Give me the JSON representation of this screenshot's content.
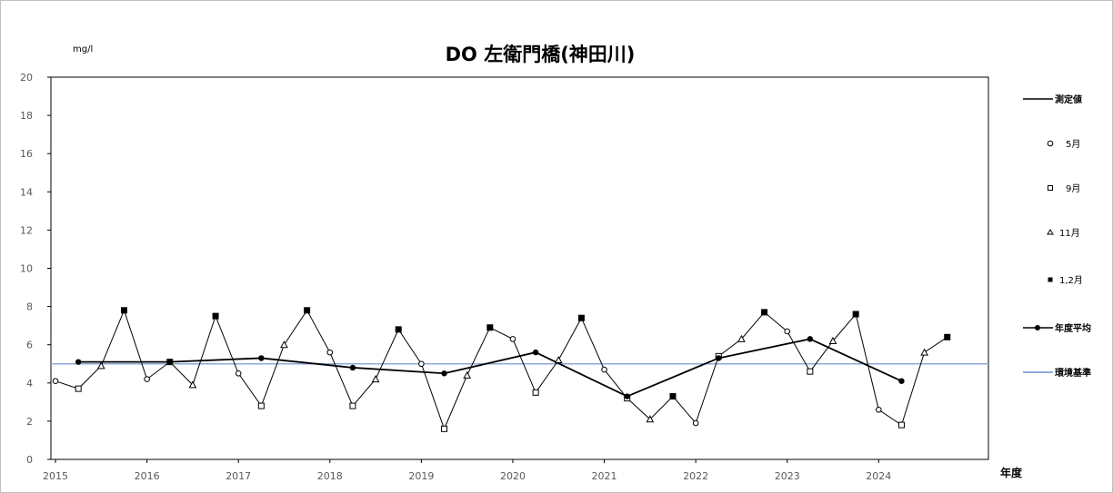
{
  "chart_data": {
    "type": "line",
    "title": "DO 左衛門橋(神田川)",
    "ylabel": "mg/l",
    "xlabel": "年度",
    "ylim": [
      0,
      20
    ],
    "yticks": [
      0,
      2,
      4,
      6,
      8,
      10,
      12,
      14,
      16,
      18,
      20
    ],
    "xlim": [
      2014.95,
      2025.2
    ],
    "xticks": [
      2015,
      2016,
      2017,
      2018,
      2019,
      2020,
      2021,
      2022,
      2023,
      2024
    ],
    "grid": false,
    "legend_position": "right",
    "series": [
      {
        "name": "測定値",
        "color": "#000000",
        "x": [
          2015.0,
          2015.25,
          2015.5,
          2015.75,
          2016.0,
          2016.25,
          2016.5,
          2016.75,
          2017.0,
          2017.25,
          2017.5,
          2017.75,
          2018.0,
          2018.25,
          2018.5,
          2018.75,
          2019.0,
          2019.25,
          2019.5,
          2019.75,
          2020.0,
          2020.25,
          2020.5,
          2020.75,
          2021.0,
          2021.25,
          2021.5,
          2021.75,
          2022.0,
          2022.25,
          2022.5,
          2022.75,
          2023.0,
          2023.25,
          2023.5,
          2023.75,
          2024.0,
          2024.25,
          2024.5,
          2024.75
        ],
        "y": [
          4.1,
          3.7,
          4.9,
          7.8,
          4.2,
          5.1,
          3.9,
          7.5,
          4.5,
          2.8,
          6.0,
          7.8,
          5.6,
          2.8,
          4.2,
          6.8,
          5.0,
          1.6,
          4.4,
          6.9,
          6.3,
          3.5,
          5.2,
          7.4,
          4.7,
          3.2,
          2.1,
          3.3,
          1.9,
          5.4,
          6.3,
          7.7,
          6.7,
          4.6,
          6.2,
          7.6,
          2.6,
          1.8,
          5.6,
          6.4
        ],
        "months": [
          "5月",
          "9月",
          "11月",
          "1,2月",
          "5月",
          "9月",
          "11月",
          "1,2月",
          "5月",
          "9月",
          "11月",
          "1,2月",
          "5月",
          "9月",
          "11月",
          "1,2月",
          "5月",
          "9月",
          "11月",
          "1,2月",
          "5月",
          "9月",
          "11月",
          "1,2月",
          "5月",
          "9月",
          "11月",
          "1,2月",
          "5月",
          "9月",
          "11月",
          "1,2月",
          "5月",
          "9月",
          "11月",
          "1,2月",
          "5月",
          "9月",
          "11月",
          "1,2月"
        ]
      },
      {
        "name": "年度平均",
        "color": "#000000",
        "x": [
          2015.25,
          2016.25,
          2017.25,
          2018.25,
          2019.25,
          2020.25,
          2021.25,
          2022.25,
          2023.25,
          2024.25
        ],
        "y": [
          5.1,
          5.1,
          5.3,
          4.8,
          4.5,
          5.6,
          3.3,
          5.3,
          6.3,
          4.1
        ]
      },
      {
        "name": "環境基準",
        "color": "#8eaadb",
        "x": [
          2014.95,
          2025.2
        ],
        "y": [
          5.0,
          5.0
        ]
      }
    ],
    "marker_legend": [
      {
        "symbol": "circle",
        "label": "5月"
      },
      {
        "symbol": "square",
        "label": "9月"
      },
      {
        "symbol": "triangle",
        "label": "11月"
      },
      {
        "symbol": "filled-square",
        "label": "1,2月"
      }
    ]
  }
}
